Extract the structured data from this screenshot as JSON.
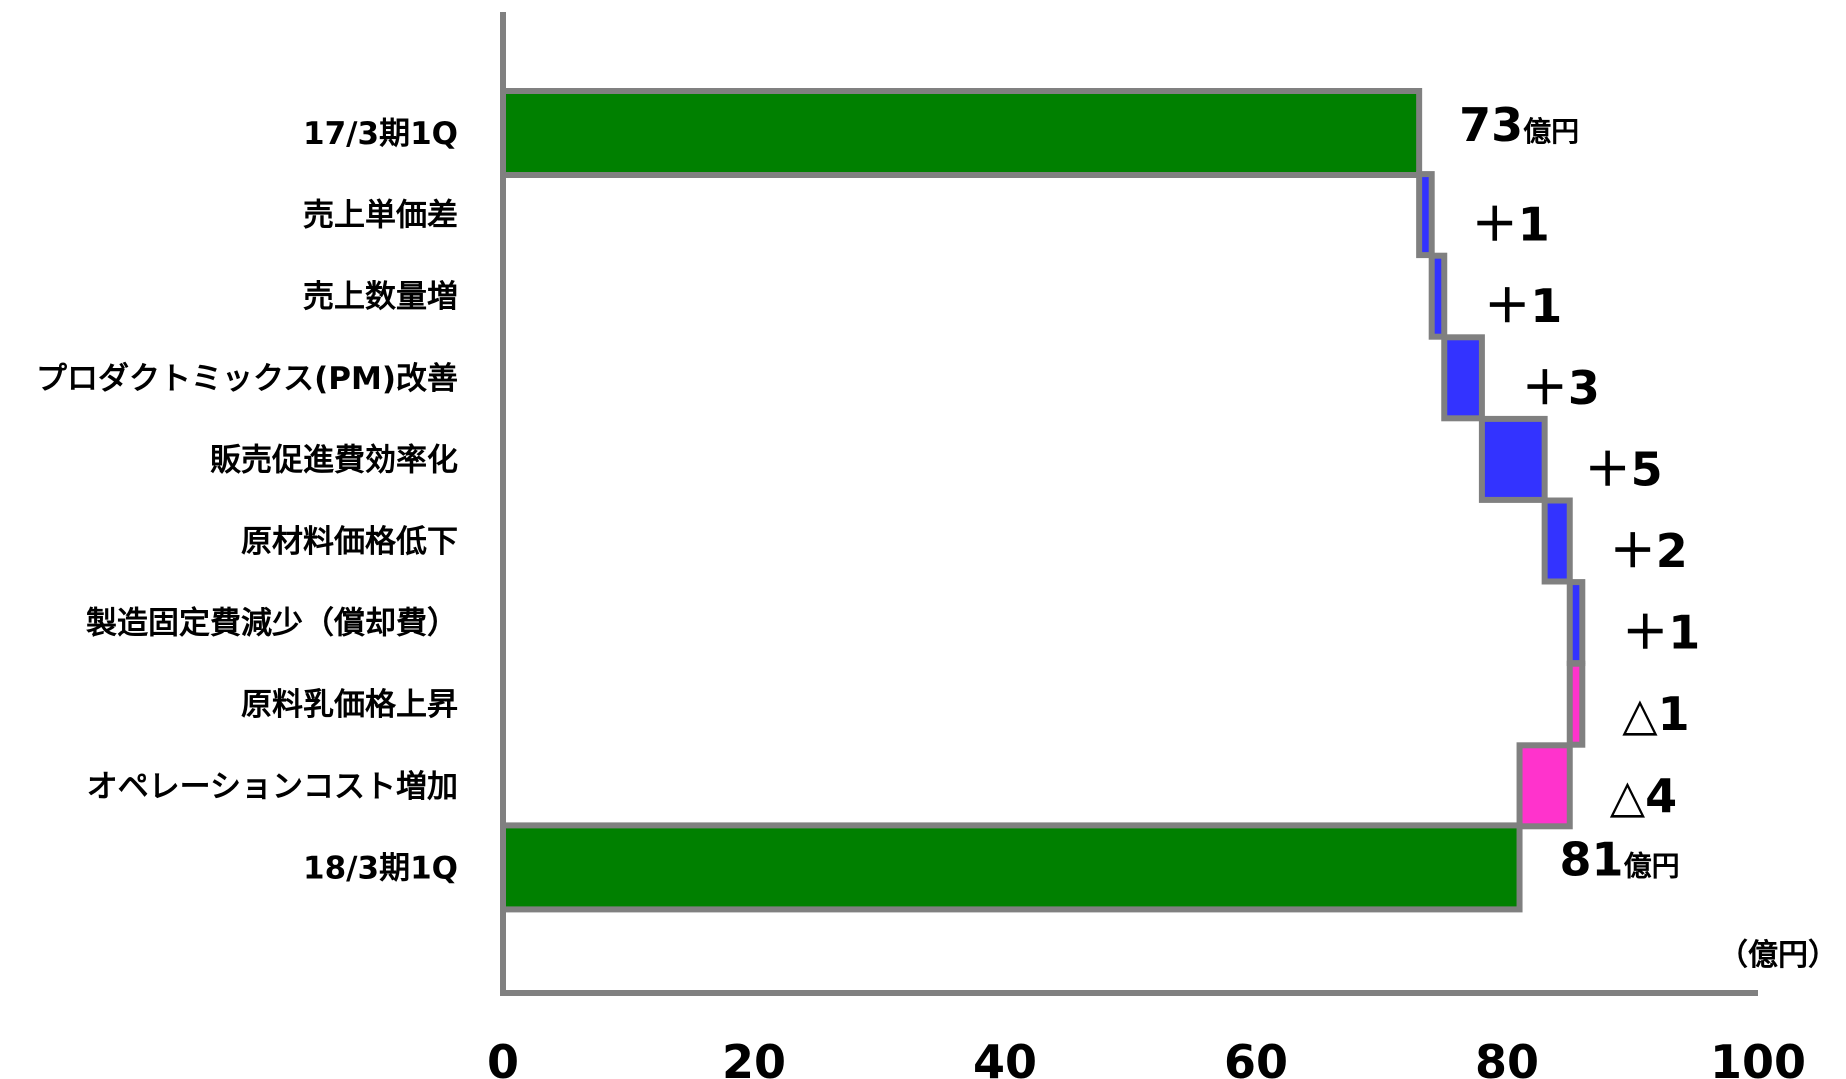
{
  "chart_data": {
    "type": "bar",
    "subtype": "waterfall",
    "orientation": "horizontal",
    "categories": [
      "17/3期1Q",
      "売上単価差",
      "売上数量増",
      "プロダクトミックス(PM)改善",
      "販売促進費効率化",
      "原材料価格低下",
      "製造固定費減少（償却費）",
      "原料乳価格上昇",
      "オペレーションコスト増加",
      "18/3期1Q"
    ],
    "bars": [
      {
        "kind": "total",
        "start": 0,
        "end": 73,
        "label": "73",
        "unit": "億円"
      },
      {
        "kind": "increase",
        "start": 73,
        "end": 74,
        "label": "＋1"
      },
      {
        "kind": "increase",
        "start": 74,
        "end": 75,
        "label": "＋1"
      },
      {
        "kind": "increase",
        "start": 75,
        "end": 78,
        "label": "＋3"
      },
      {
        "kind": "increase",
        "start": 78,
        "end": 83,
        "label": "＋5"
      },
      {
        "kind": "increase",
        "start": 83,
        "end": 85,
        "label": "＋2"
      },
      {
        "kind": "increase",
        "start": 85,
        "end": 86,
        "label": "＋1"
      },
      {
        "kind": "decrease",
        "start": 86,
        "end": 85,
        "label": "△1"
      },
      {
        "kind": "decrease",
        "start": 85,
        "end": 81,
        "label": "△4"
      },
      {
        "kind": "total",
        "start": 0,
        "end": 81,
        "label": "81",
        "unit": "億円"
      }
    ],
    "xlim": [
      0,
      100
    ],
    "xticks": [
      "0",
      "20",
      "40",
      "60",
      "80",
      "100"
    ],
    "unit_label": "（億円）",
    "colors": {
      "total": "#008000",
      "increase": "#3333ff",
      "decrease": "#ff33cc",
      "outline": "#808080",
      "axis": "#808080"
    }
  }
}
